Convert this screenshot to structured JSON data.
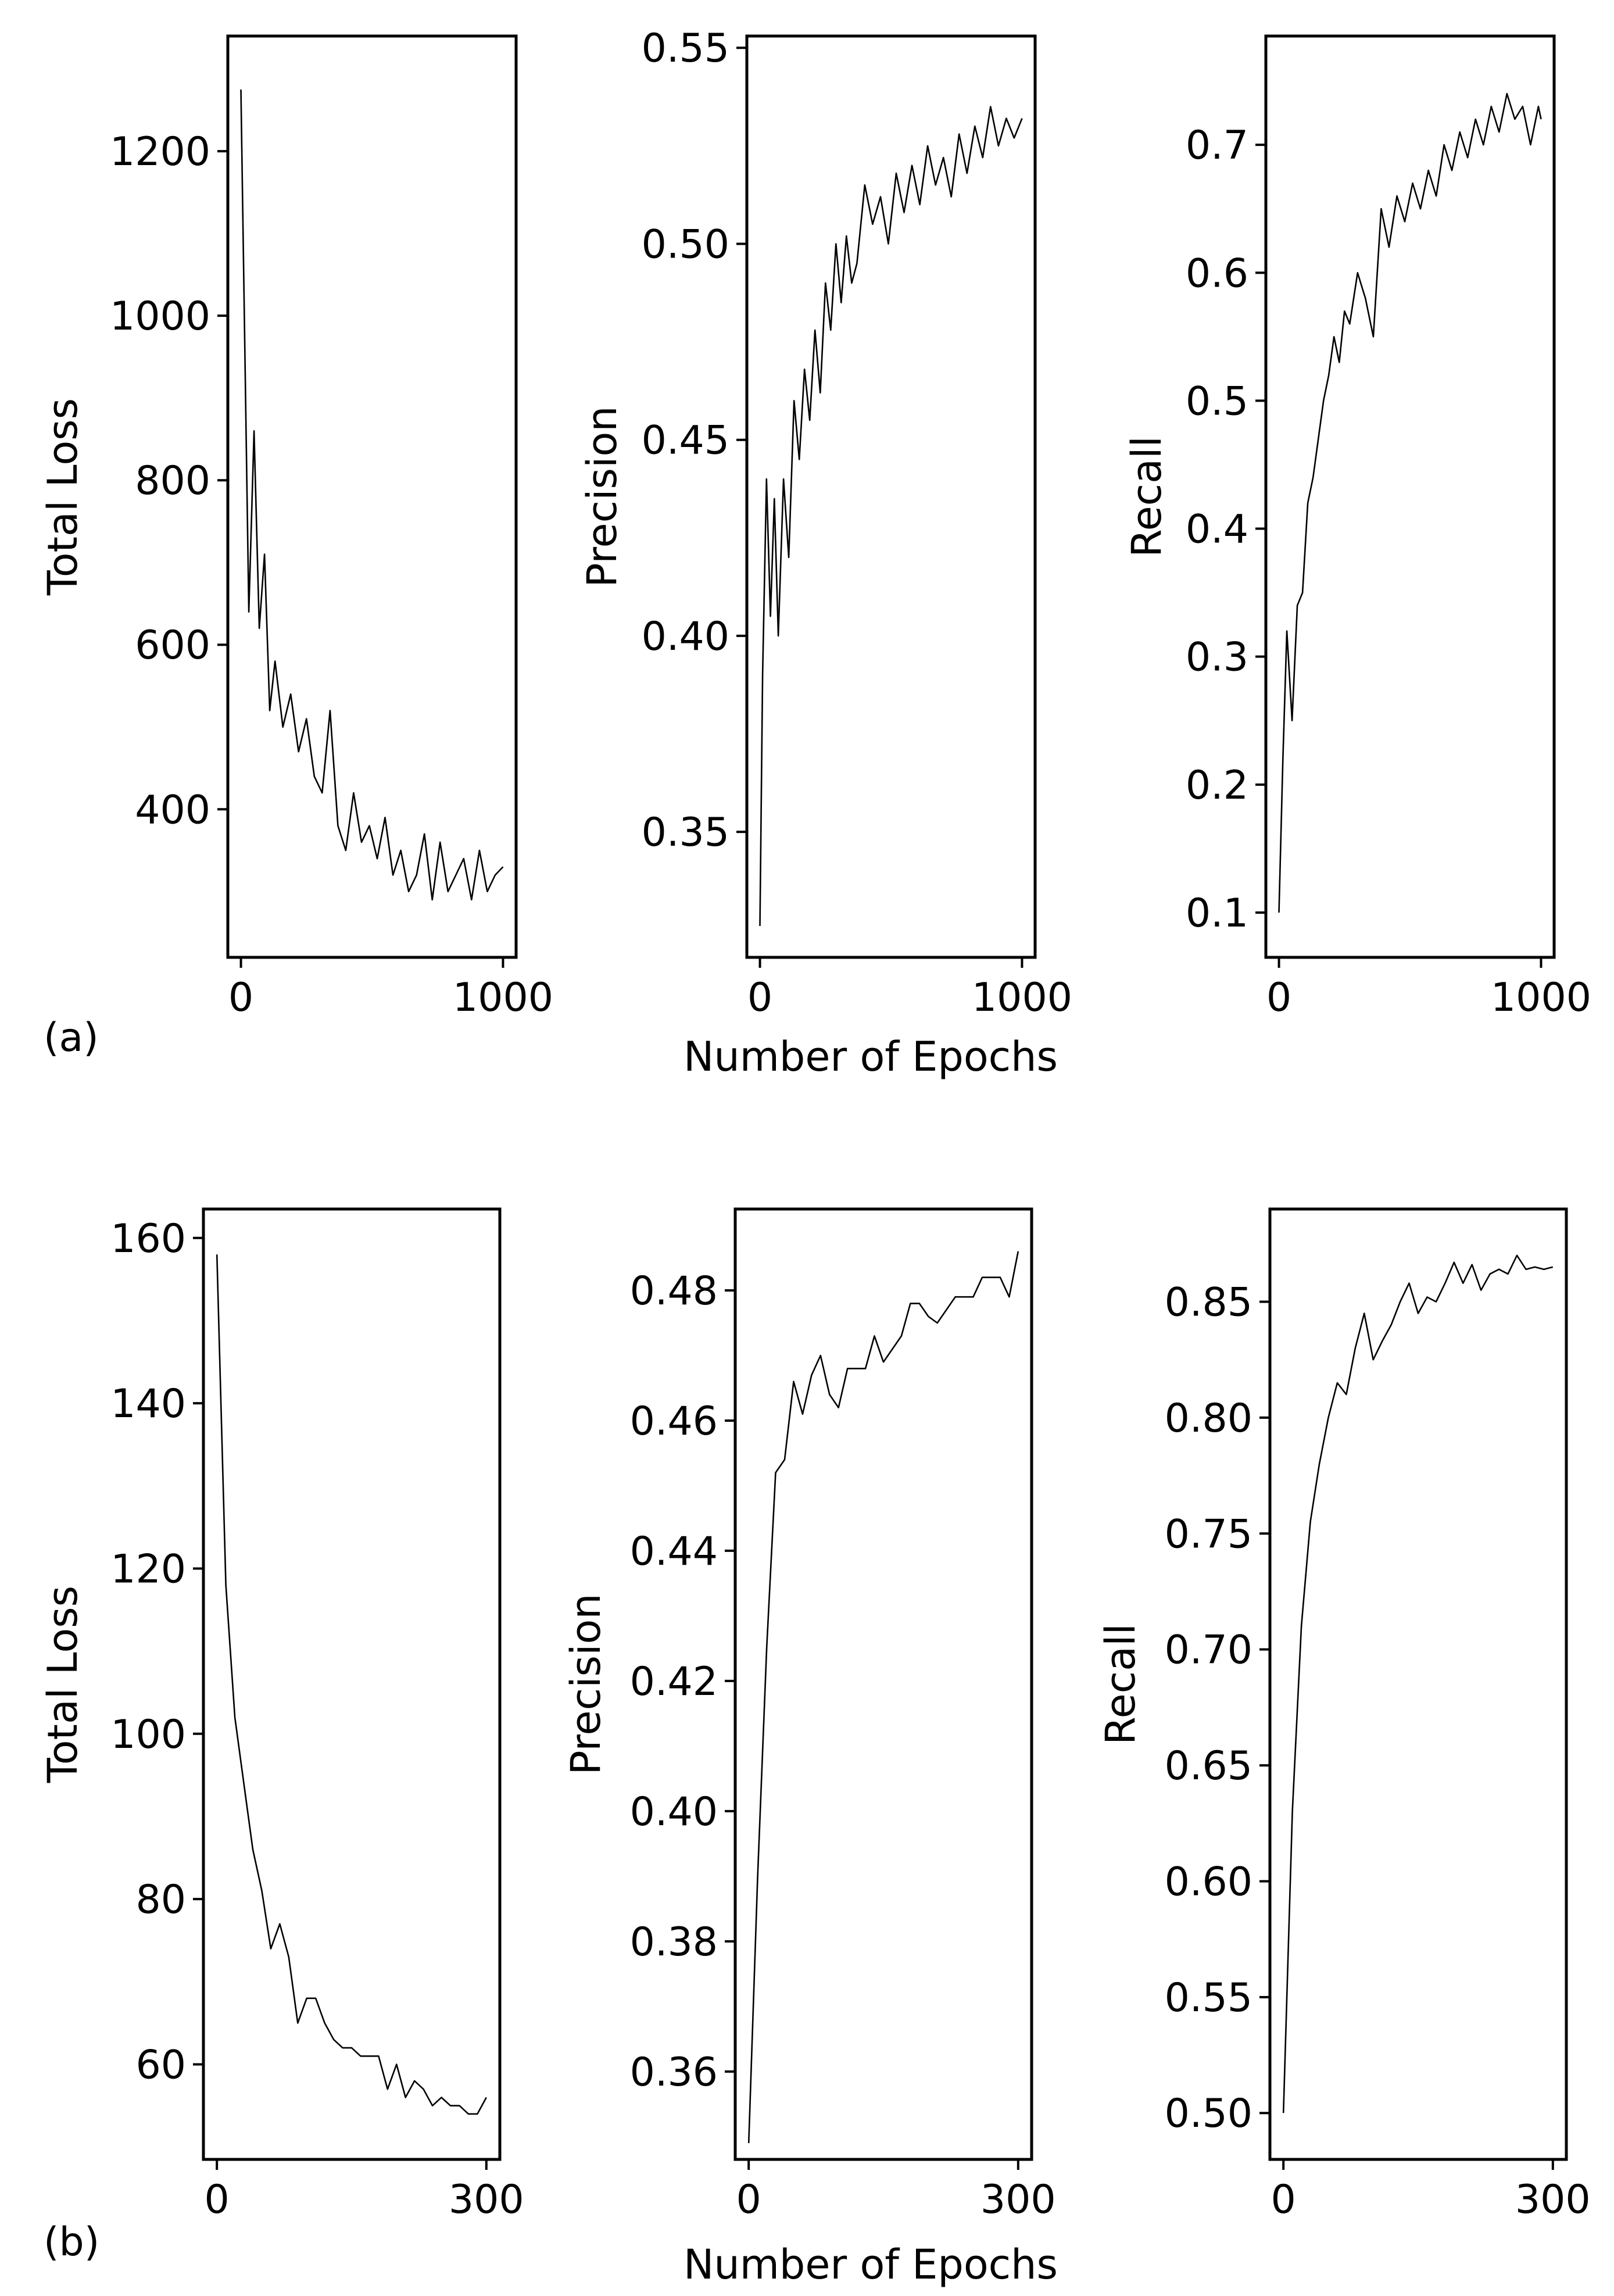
{
  "figure": {
    "panel_labels": [
      "(a)",
      "(b)"
    ],
    "shared_xlabel": "Number of Epochs"
  },
  "chart_data": [
    {
      "type": "line",
      "panel": "a",
      "title": "",
      "xlabel": "",
      "ylabel": "Total Loss",
      "xlim": [
        -50,
        1050
      ],
      "ylim": [
        220,
        1340
      ],
      "xticks": [
        0,
        1000
      ],
      "xtick_labels": [
        "0",
        "1000"
      ],
      "yticks": [
        400,
        600,
        800,
        1000,
        1200
      ],
      "ytick_labels": [
        "400",
        "600",
        "800",
        "1000",
        "1200"
      ],
      "x": [
        0,
        30,
        50,
        70,
        90,
        110,
        130,
        160,
        190,
        220,
        250,
        280,
        310,
        340,
        370,
        400,
        430,
        460,
        490,
        520,
        550,
        580,
        610,
        640,
        670,
        700,
        730,
        760,
        790,
        820,
        850,
        880,
        910,
        940,
        970,
        1000
      ],
      "y": [
        1275,
        640,
        860,
        620,
        710,
        520,
        580,
        500,
        540,
        470,
        510,
        440,
        420,
        520,
        380,
        350,
        420,
        360,
        380,
        340,
        390,
        320,
        350,
        300,
        320,
        370,
        290,
        360,
        300,
        320,
        340,
        290,
        350,
        300,
        320,
        330
      ]
    },
    {
      "type": "line",
      "panel": "a",
      "title": "",
      "xlabel": "Number of Epochs",
      "ylabel": "Precision",
      "xlim": [
        -50,
        1050
      ],
      "ylim": [
        0.318,
        0.553
      ],
      "xticks": [
        0,
        1000
      ],
      "xtick_labels": [
        "0",
        "1000"
      ],
      "yticks": [
        0.35,
        0.4,
        0.45,
        0.5,
        0.55
      ],
      "ytick_labels": [
        "0.35",
        "0.40",
        "0.45",
        "0.50",
        "0.55"
      ],
      "x": [
        0,
        10,
        25,
        40,
        55,
        70,
        90,
        110,
        130,
        150,
        170,
        190,
        210,
        230,
        250,
        270,
        290,
        310,
        330,
        350,
        370,
        400,
        430,
        460,
        490,
        520,
        550,
        580,
        610,
        640,
        670,
        700,
        730,
        760,
        790,
        820,
        850,
        880,
        910,
        940,
        970,
        1000
      ],
      "y": [
        0.326,
        0.39,
        0.44,
        0.405,
        0.435,
        0.4,
        0.44,
        0.42,
        0.46,
        0.445,
        0.468,
        0.455,
        0.478,
        0.462,
        0.49,
        0.478,
        0.5,
        0.485,
        0.502,
        0.49,
        0.495,
        0.515,
        0.505,
        0.512,
        0.5,
        0.518,
        0.508,
        0.52,
        0.51,
        0.525,
        0.515,
        0.522,
        0.512,
        0.528,
        0.518,
        0.53,
        0.522,
        0.535,
        0.525,
        0.532,
        0.527,
        0.532
      ]
    },
    {
      "type": "line",
      "panel": "a",
      "title": "",
      "xlabel": "",
      "ylabel": "Recall",
      "xlim": [
        -50,
        1050
      ],
      "ylim": [
        0.065,
        0.785
      ],
      "xticks": [
        0,
        1000
      ],
      "xtick_labels": [
        "0",
        "1000"
      ],
      "yticks": [
        0.1,
        0.2,
        0.3,
        0.4,
        0.5,
        0.6,
        0.7
      ],
      "ytick_labels": [
        "0.1",
        "0.2",
        "0.3",
        "0.4",
        "0.5",
        "0.6",
        "0.7"
      ],
      "x": [
        0,
        15,
        30,
        50,
        70,
        90,
        110,
        130,
        150,
        170,
        190,
        210,
        230,
        250,
        270,
        300,
        330,
        360,
        390,
        420,
        450,
        480,
        510,
        540,
        570,
        600,
        630,
        660,
        690,
        720,
        750,
        780,
        810,
        840,
        870,
        900,
        930,
        960,
        990,
        1000
      ],
      "y": [
        0.1,
        0.22,
        0.32,
        0.25,
        0.34,
        0.35,
        0.42,
        0.44,
        0.47,
        0.5,
        0.52,
        0.55,
        0.53,
        0.57,
        0.56,
        0.6,
        0.58,
        0.55,
        0.65,
        0.62,
        0.66,
        0.64,
        0.67,
        0.65,
        0.68,
        0.66,
        0.7,
        0.68,
        0.71,
        0.69,
        0.72,
        0.7,
        0.73,
        0.71,
        0.74,
        0.72,
        0.73,
        0.7,
        0.73,
        0.72
      ]
    },
    {
      "type": "line",
      "panel": "b",
      "title": "",
      "xlabel": "",
      "ylabel": "Total Loss",
      "xlim": [
        -15,
        315
      ],
      "ylim": [
        48.5,
        163.5
      ],
      "xticks": [
        0,
        300
      ],
      "xtick_labels": [
        "0",
        "300"
      ],
      "yticks": [
        60,
        80,
        100,
        120,
        140,
        160
      ],
      "ytick_labels": [
        "60",
        "80",
        "100",
        "120",
        "140",
        "160"
      ],
      "x": [
        0,
        10,
        20,
        30,
        40,
        50,
        60,
        70,
        80,
        90,
        100,
        110,
        120,
        130,
        140,
        150,
        160,
        170,
        180,
        190,
        200,
        210,
        220,
        230,
        240,
        250,
        260,
        270,
        280,
        290,
        300
      ],
      "y": [
        158,
        118,
        102,
        94,
        86,
        81,
        74,
        77,
        73,
        65,
        68,
        68,
        65,
        63,
        62,
        62,
        61,
        61,
        61,
        57,
        60,
        56,
        58,
        57,
        55,
        56,
        55,
        55,
        54,
        54,
        56
      ]
    },
    {
      "type": "line",
      "panel": "b",
      "title": "",
      "xlabel": "Number of Epochs",
      "ylabel": "Precision",
      "xlim": [
        -15,
        315
      ],
      "ylim": [
        0.3465,
        0.4925
      ],
      "xticks": [
        0,
        300
      ],
      "xtick_labels": [
        "0",
        "300"
      ],
      "yticks": [
        0.36,
        0.38,
        0.4,
        0.42,
        0.44,
        0.46,
        0.48
      ],
      "ytick_labels": [
        "0.36",
        "0.38",
        "0.40",
        "0.42",
        "0.44",
        "0.46",
        "0.48"
      ],
      "x": [
        0,
        10,
        20,
        30,
        40,
        50,
        60,
        70,
        80,
        90,
        100,
        110,
        120,
        130,
        140,
        150,
        160,
        170,
        180,
        190,
        200,
        210,
        220,
        230,
        240,
        250,
        260,
        270,
        280,
        290,
        300
      ],
      "y": [
        0.349,
        0.39,
        0.425,
        0.452,
        0.454,
        0.466,
        0.461,
        0.467,
        0.47,
        0.464,
        0.462,
        0.468,
        0.468,
        0.468,
        0.473,
        0.469,
        0.471,
        0.473,
        0.478,
        0.478,
        0.476,
        0.475,
        0.477,
        0.479,
        0.479,
        0.479,
        0.482,
        0.482,
        0.482,
        0.479,
        0.486
      ]
    },
    {
      "type": "line",
      "panel": "b",
      "title": "",
      "xlabel": "",
      "ylabel": "Recall",
      "xlim": [
        -15,
        315
      ],
      "ylim": [
        0.48,
        0.89
      ],
      "xticks": [
        0,
        300
      ],
      "xtick_labels": [
        "0",
        "300"
      ],
      "yticks": [
        0.5,
        0.55,
        0.6,
        0.65,
        0.7,
        0.75,
        0.8,
        0.85
      ],
      "ytick_labels": [
        "0.50",
        "0.55",
        "0.60",
        "0.65",
        "0.70",
        "0.75",
        "0.80",
        "0.85"
      ],
      "x": [
        0,
        10,
        20,
        30,
        40,
        50,
        60,
        70,
        80,
        90,
        100,
        110,
        120,
        130,
        140,
        150,
        160,
        170,
        180,
        190,
        200,
        210,
        220,
        230,
        240,
        250,
        260,
        270,
        280,
        290,
        300
      ],
      "y": [
        0.5,
        0.63,
        0.71,
        0.755,
        0.78,
        0.8,
        0.815,
        0.81,
        0.83,
        0.845,
        0.825,
        0.833,
        0.84,
        0.85,
        0.858,
        0.845,
        0.852,
        0.85,
        0.858,
        0.867,
        0.858,
        0.866,
        0.855,
        0.862,
        0.864,
        0.862,
        0.87,
        0.864,
        0.865,
        0.864,
        0.865
      ]
    }
  ]
}
